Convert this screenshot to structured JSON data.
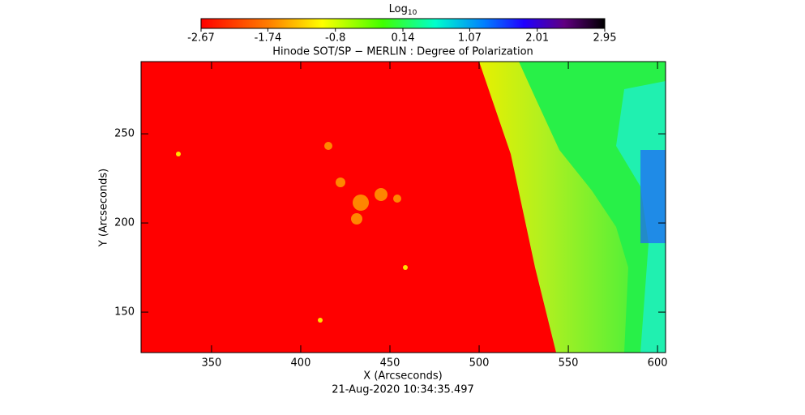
{
  "chart_data": {
    "type": "image",
    "title": "Hinode SOT/SP − MERLIN : Degree of Polarization",
    "subtitle": "21-Aug-2020 10:34:35.497",
    "x_label": "X (Arcseconds)",
    "y_label": "Y (Arcseconds)",
    "colorbar_label": "Log",
    "colorbar_label_sub": "10",
    "clim": [
      -2.67,
      2.95
    ],
    "cticks": [
      -2.67,
      -1.74,
      -0.8,
      0.14,
      1.07,
      2.01,
      2.95
    ],
    "xlim": [
      310.5,
      604.5
    ],
    "xticks": [
      350,
      400,
      450,
      500,
      550,
      600
    ],
    "ylim": [
      127.3,
      290.5
    ],
    "yticks": [
      150,
      200,
      250
    ]
  }
}
